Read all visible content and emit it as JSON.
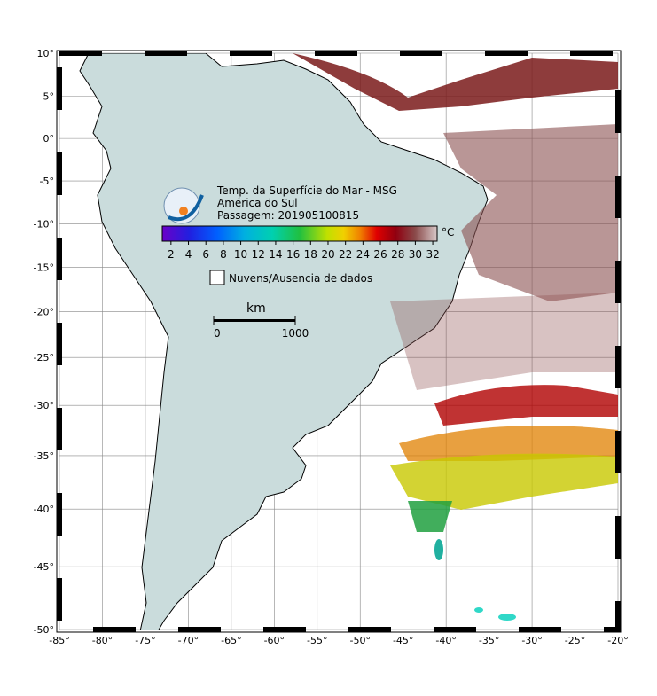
{
  "map": {
    "title_lines": [
      "Temp. da Superfície do Mar - MSG",
      "América do Sul",
      "Passagem: 201905100815"
    ],
    "lonlim": [
      -85,
      -20
    ],
    "latlim": [
      -50,
      10
    ],
    "lon_ticks": [
      {
        "value": -85,
        "label": "-85°"
      },
      {
        "value": -80,
        "label": "-80°"
      },
      {
        "value": -75,
        "label": "-75°"
      },
      {
        "value": -70,
        "label": "-70°"
      },
      {
        "value": -65,
        "label": "-65°"
      },
      {
        "value": -60,
        "label": "-60°"
      },
      {
        "value": -55,
        "label": "-55°"
      },
      {
        "value": -50,
        "label": "-50°"
      },
      {
        "value": -45,
        "label": "-45°"
      },
      {
        "value": -40,
        "label": "-40°"
      },
      {
        "value": -35,
        "label": "-35°"
      },
      {
        "value": -30,
        "label": "-30°"
      },
      {
        "value": -25,
        "label": "-25°"
      },
      {
        "value": -20,
        "label": "-20°"
      }
    ],
    "lat_ticks": [
      {
        "value": 10,
        "label": "10°"
      },
      {
        "value": 5,
        "label": "5°"
      },
      {
        "value": 0,
        "label": "0°"
      },
      {
        "value": -5,
        "label": "-5°"
      },
      {
        "value": -10,
        "label": "-10°"
      },
      {
        "value": -15,
        "label": "-15°"
      },
      {
        "value": -20,
        "label": "-20°"
      },
      {
        "value": -25,
        "label": "-25°"
      },
      {
        "value": -30,
        "label": "-30°"
      },
      {
        "value": -35,
        "label": "-35°"
      },
      {
        "value": -40,
        "label": "-40°"
      },
      {
        "value": -45,
        "label": "-45°"
      },
      {
        "value": -50,
        "label": "-50°"
      }
    ],
    "colorbar": {
      "range": [
        1,
        32.5
      ],
      "ticks": [
        2,
        4,
        6,
        8,
        10,
        12,
        14,
        16,
        18,
        20,
        22,
        24,
        26,
        28,
        30,
        32
      ],
      "unit": "°C"
    },
    "legend": "Nuvens/Ausencia de dados",
    "scale": {
      "unit": "km",
      "ticks": [
        0,
        1000
      ],
      "range": [
        0,
        1000
      ]
    }
  }
}
